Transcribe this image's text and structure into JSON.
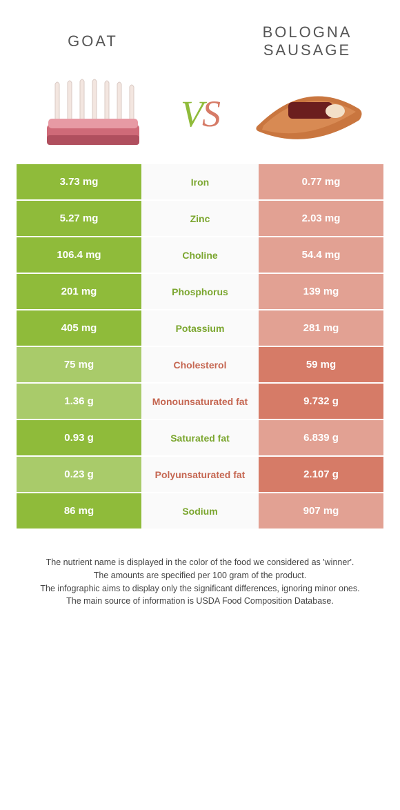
{
  "header": {
    "left": "GOAT",
    "right": "BOLOGNA SAUSAGE",
    "vs_v": "V",
    "vs_s": "S"
  },
  "colors": {
    "green": "#8fbb3a",
    "green_dim": "#a9cb6a",
    "red": "#d67b67",
    "red_dim": "#e2a193",
    "mid_green": "#7ba62f",
    "mid_red": "#c56651"
  },
  "rows": [
    {
      "left": "3.73 mg",
      "label": "Iron",
      "right": "0.77 mg",
      "winner": "left"
    },
    {
      "left": "5.27 mg",
      "label": "Zinc",
      "right": "2.03 mg",
      "winner": "left"
    },
    {
      "left": "106.4 mg",
      "label": "Choline",
      "right": "54.4 mg",
      "winner": "left"
    },
    {
      "left": "201 mg",
      "label": "Phosphorus",
      "right": "139 mg",
      "winner": "left"
    },
    {
      "left": "405 mg",
      "label": "Potassium",
      "right": "281 mg",
      "winner": "left"
    },
    {
      "left": "75 mg",
      "label": "Cholesterol",
      "right": "59 mg",
      "winner": "right"
    },
    {
      "left": "1.36 g",
      "label": "Monounsaturated fat",
      "right": "9.732 g",
      "winner": "right"
    },
    {
      "left": "0.93 g",
      "label": "Saturated fat",
      "right": "6.839 g",
      "winner": "left"
    },
    {
      "left": "0.23 g",
      "label": "Polyunsaturated fat",
      "right": "2.107 g",
      "winner": "right"
    },
    {
      "left": "86 mg",
      "label": "Sodium",
      "right": "907 mg",
      "winner": "left"
    }
  ],
  "footer": {
    "l1": "The nutrient name is displayed in the color of the food we considered as 'winner'.",
    "l2": "The amounts are specified per 100 gram of the product.",
    "l3": "The infographic aims to display only the significant differences, ignoring minor ones.",
    "l4": "The main source of information is USDA Food Composition Database."
  }
}
